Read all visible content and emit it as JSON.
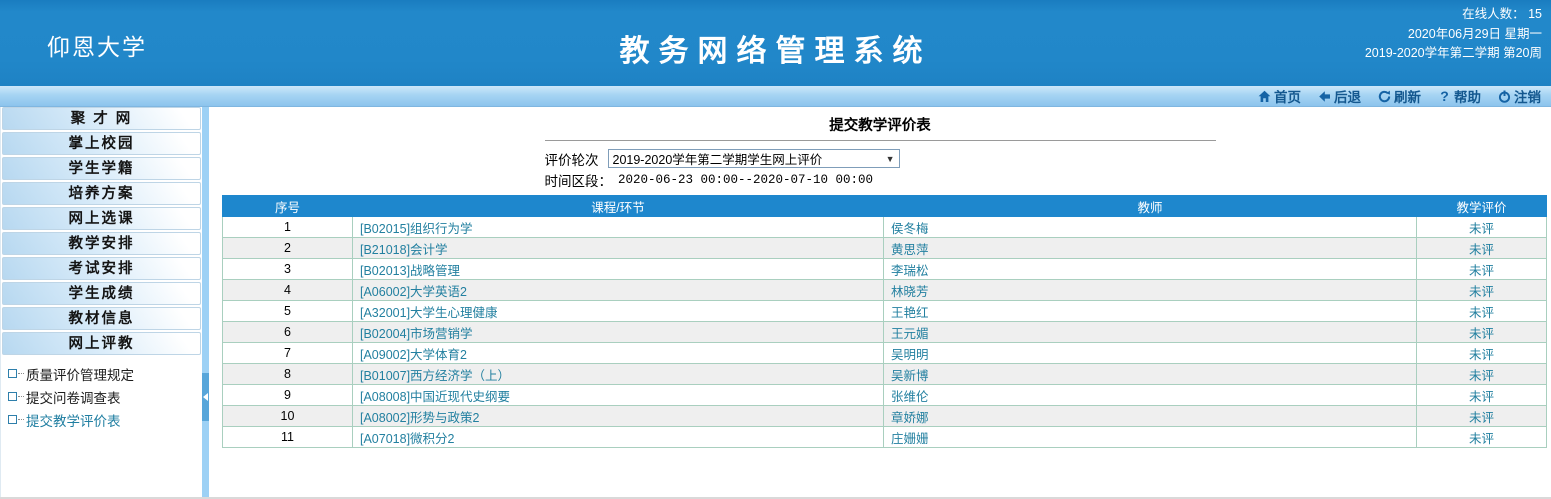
{
  "header": {
    "university": "仰恩大学",
    "system_title": "教务网络管理系统",
    "online_count": "在线人数： 15",
    "date_line": "2020年06月29日 星期一",
    "term_line": "2019-2020学年第二学期 第20周"
  },
  "toolbar": {
    "items": [
      {
        "icon": "home-icon",
        "label": "首页"
      },
      {
        "icon": "back-icon",
        "label": "后退"
      },
      {
        "icon": "refresh-icon",
        "label": "刷新"
      },
      {
        "icon": "help-icon",
        "label": "帮助"
      },
      {
        "icon": "logout-icon",
        "label": "注销"
      }
    ]
  },
  "sidebar": {
    "menu": [
      "聚 才 网",
      "掌上校园",
      "学生学籍",
      "培养方案",
      "网上选课",
      "教学安排",
      "考试安排",
      "学生成绩",
      "教材信息",
      "网上评教"
    ],
    "submenu": [
      {
        "label": "质量评价管理规定",
        "selected": false
      },
      {
        "label": "提交问卷调查表",
        "selected": false
      },
      {
        "label": "提交教学评价表",
        "selected": true
      }
    ]
  },
  "main": {
    "title": "提交教学评价表",
    "round_label": "评价轮次",
    "round_value": "2019-2020学年第二学期学生网上评价",
    "period_label": "时间区段：",
    "period_value": "2020-06-23 00:00--2020-07-10 00:00",
    "table": {
      "headers": [
        "序号",
        "课程/环节",
        "教师",
        "教学评价"
      ],
      "rows": [
        {
          "no": "1",
          "course": "[B02015]组织行为学",
          "teacher": "侯冬梅",
          "eval": "未评"
        },
        {
          "no": "2",
          "course": "[B21018]会计学",
          "teacher": "黄思萍",
          "eval": "未评"
        },
        {
          "no": "3",
          "course": "[B02013]战略管理",
          "teacher": "李瑞松",
          "eval": "未评"
        },
        {
          "no": "4",
          "course": "[A06002]大学英语2",
          "teacher": "林晓芳",
          "eval": "未评"
        },
        {
          "no": "5",
          "course": "[A32001]大学生心理健康",
          "teacher": "王艳红",
          "eval": "未评"
        },
        {
          "no": "6",
          "course": "[B02004]市场营销学",
          "teacher": "王元媚",
          "eval": "未评"
        },
        {
          "no": "7",
          "course": "[A09002]大学体育2",
          "teacher": "吴明明",
          "eval": "未评"
        },
        {
          "no": "8",
          "course": "[B01007]西方经济学（上）",
          "teacher": "吴新博",
          "eval": "未评"
        },
        {
          "no": "9",
          "course": "[A08008]中国近现代史纲要",
          "teacher": "张维伦",
          "eval": "未评"
        },
        {
          "no": "10",
          "course": "[A08002]形势与政策2",
          "teacher": "章娇娜",
          "eval": "未评"
        },
        {
          "no": "11",
          "course": "[A07018]微积分2",
          "teacher": "庄姗姗",
          "eval": "未评"
        }
      ]
    }
  },
  "colors": {
    "header_blue": "#2187c9",
    "toolbar_blue": "#a6d4f3",
    "toolbar_text": "#14588f",
    "table_header_blue": "#1e87cd",
    "table_border": "#a9cfbf",
    "link_teal": "#2380a0",
    "divider_blue": "#9dd1f5"
  }
}
